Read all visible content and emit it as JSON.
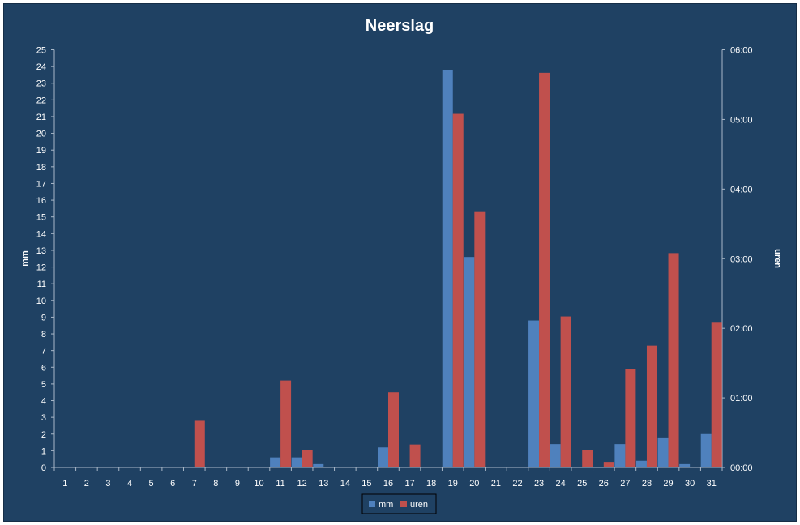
{
  "colors": {
    "background": "#1f4163",
    "frame": "#162e47",
    "mm": "#4f81bd",
    "uren": "#c0504d",
    "axis": "#a9b8c8"
  },
  "chart_data": {
    "type": "bar",
    "title": "Neerslag",
    "ylabel": "mm",
    "y2label": "uren",
    "ylim": [
      0,
      25
    ],
    "y2lim": [
      0,
      6
    ],
    "y2_unit": "hours",
    "categories": [
      "1",
      "2",
      "3",
      "4",
      "5",
      "6",
      "7",
      "8",
      "9",
      "10",
      "11",
      "12",
      "13",
      "14",
      "15",
      "16",
      "17",
      "18",
      "19",
      "20",
      "21",
      "22",
      "23",
      "24",
      "25",
      "26",
      "27",
      "28",
      "29",
      "30",
      "31"
    ],
    "y_ticks": [
      "0",
      "1",
      "2",
      "3",
      "4",
      "5",
      "6",
      "7",
      "8",
      "9",
      "10",
      "11",
      "12",
      "13",
      "14",
      "15",
      "16",
      "17",
      "18",
      "19",
      "20",
      "21",
      "22",
      "23",
      "24",
      "25"
    ],
    "y2_ticks": [
      "00:00",
      "01:00",
      "02:00",
      "03:00",
      "04:00",
      "05:00",
      "06:00"
    ],
    "series": [
      {
        "name": "mm",
        "axis": "left",
        "values": [
          0,
          0,
          0,
          0,
          0,
          0,
          0,
          0,
          0,
          0,
          0.6,
          0.6,
          0.2,
          0,
          0,
          1.2,
          0,
          0,
          23.8,
          12.6,
          0,
          0,
          8.8,
          1.4,
          0,
          0,
          1.4,
          0.4,
          1.8,
          0.2,
          2.0
        ]
      },
      {
        "name": "uren",
        "axis": "right",
        "values": [
          0,
          0,
          0,
          0,
          0,
          0,
          0.67,
          0,
          0,
          0,
          1.25,
          0.25,
          0,
          0,
          0,
          1.08,
          0.33,
          0,
          5.08,
          3.67,
          0,
          0,
          5.67,
          2.17,
          0.25,
          0.08,
          1.42,
          1.75,
          3.08,
          0,
          2.08
        ]
      }
    ],
    "legend": {
      "position": "bottom",
      "entries": [
        "mm",
        "uren"
      ]
    },
    "grid": false
  }
}
